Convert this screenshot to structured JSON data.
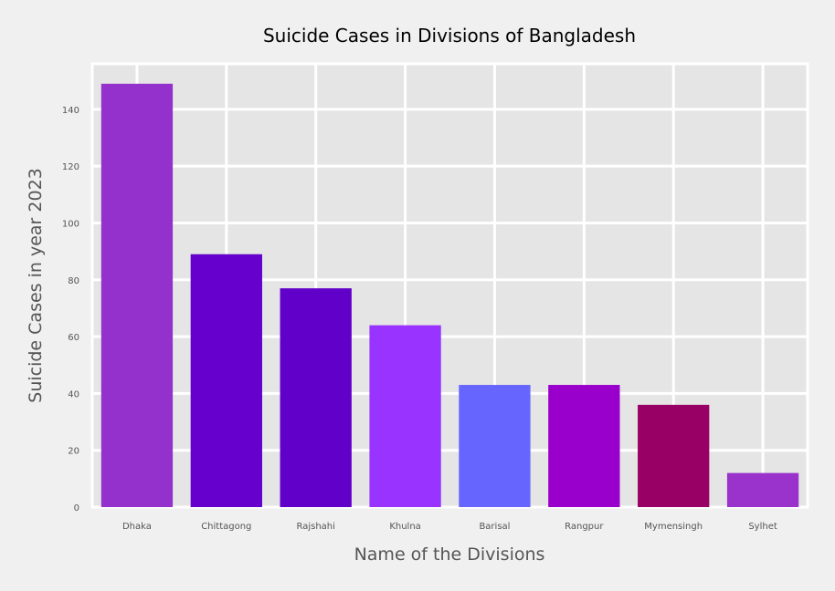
{
  "chart_data": {
    "type": "bar",
    "title": "Suicide Cases in Divisions of Bangladesh",
    "xlabel": "Name of the Divisions",
    "ylabel": "Suicide Cases in year 2023",
    "categories": [
      "Dhaka",
      "Chittagong",
      "Rajshahi",
      "Khulna",
      "Barisal",
      "Rangpur",
      "Mymensingh",
      "Sylhet"
    ],
    "values": [
      149,
      89,
      77,
      64,
      43,
      43,
      36,
      12
    ],
    "colors": [
      "#9430cc",
      "#6600cc",
      "#6000c8",
      "#9933ff",
      "#6666ff",
      "#9900cc",
      "#990066",
      "#9933cc"
    ],
    "yticks": [
      0,
      20,
      40,
      60,
      80,
      100,
      120,
      140
    ],
    "ylim": [
      0,
      156
    ],
    "grid": true
  }
}
